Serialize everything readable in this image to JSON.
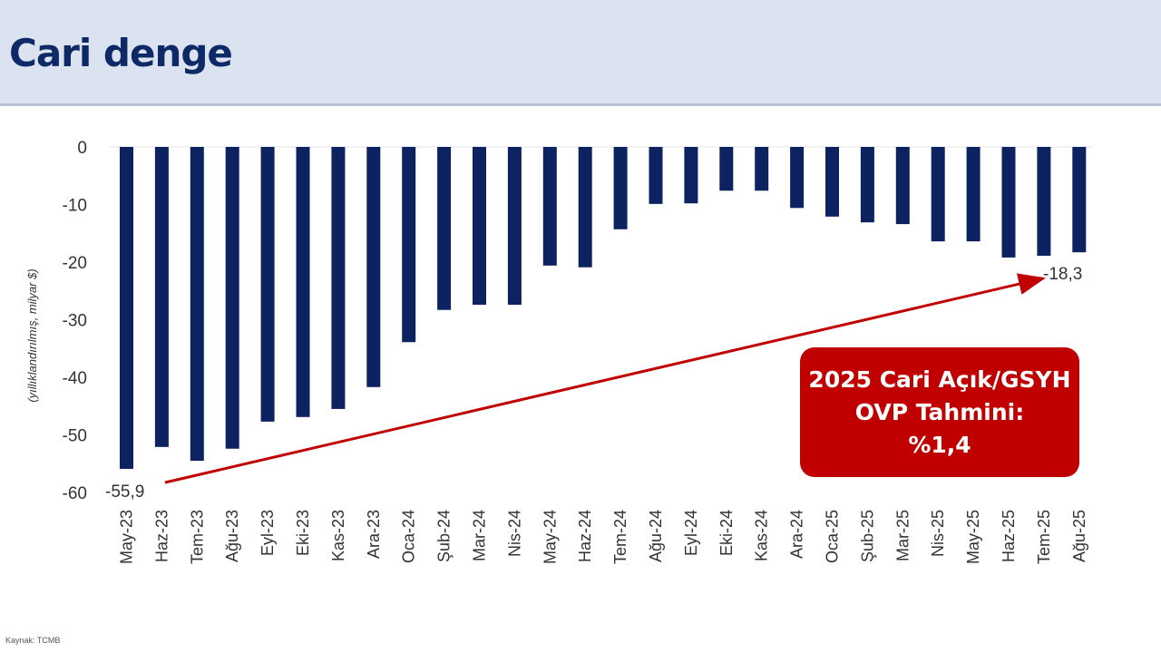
{
  "header": {
    "title": "Cari denge"
  },
  "source": "Kaynak: TCMB",
  "callout": {
    "line1": "2025 Cari Açık/GSYH",
    "line2": "OVP Tahmini:",
    "line3": "%1,4"
  },
  "annotations": {
    "start_label": "-55,9",
    "end_label": "-18,3"
  },
  "colors": {
    "bar": "#0d2260",
    "arrow": "#c00000",
    "callout": "#c00000",
    "header_bg": "#dce3f0"
  },
  "chart_data": {
    "type": "bar",
    "ylabel": "(yıllıklandırılmış, milyar $)",
    "ylim": [
      -60,
      0
    ],
    "yticks": [
      0,
      -10,
      -20,
      -30,
      -40,
      -50,
      -60
    ],
    "grid": false,
    "categories": [
      "May-23",
      "Haz-23",
      "Tem-23",
      "Ağu-23",
      "Eyl-23",
      "Eki-23",
      "Kas-23",
      "Ara-23",
      "Oca-24",
      "Şub-24",
      "Mar-24",
      "Nis-24",
      "May-24",
      "Haz-24",
      "Tem-24",
      "Ağu-24",
      "Eyl-24",
      "Eki-24",
      "Kas-24",
      "Ara-24",
      "Oca-25",
      "Şub-25",
      "Mar-25",
      "Nis-25",
      "May-25",
      "Haz-25",
      "Tem-25",
      "Ağu-25"
    ],
    "values": [
      -55.9,
      -52.1,
      -54.5,
      -52.4,
      -47.7,
      -46.9,
      -45.5,
      -41.7,
      -33.9,
      -28.3,
      -27.4,
      -27.4,
      -20.6,
      -20.9,
      -14.3,
      -9.9,
      -9.8,
      -7.6,
      -7.6,
      -10.6,
      -12.1,
      -13.1,
      -13.4,
      -16.4,
      -16.4,
      -19.2,
      -18.9,
      -18.3
    ]
  }
}
